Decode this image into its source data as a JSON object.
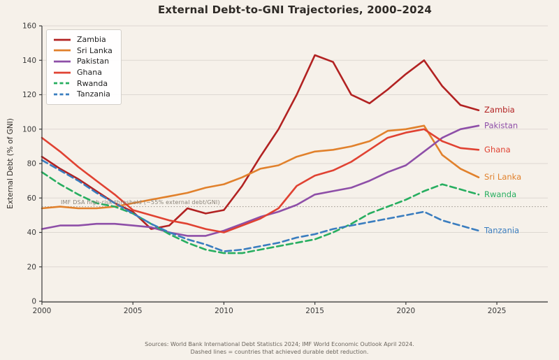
{
  "title": "External Debt-to-GNI Trajectories, 2000–2024",
  "y_axis": {
    "label": "External Debt (% of GNI)",
    "ticks": [
      0,
      20,
      40,
      60,
      80,
      100,
      120,
      140,
      160
    ]
  },
  "x_axis": {
    "ticks": [
      2000,
      2005,
      2010,
      2015,
      2020,
      2025
    ]
  },
  "threshold": {
    "value": 55,
    "label": "IMF DSA high-risk threshold (~55% external debt/GNI)"
  },
  "footer": {
    "line1": "Sources: World Bank International Debt Statistics 2024; IMF World Economic Outlook April 2024.",
    "line2": "Dashed lines = countries that achieved durable debt reduction."
  },
  "chart_data": {
    "type": "line",
    "title": "External Debt-to-GNI Trajectories, 2000–2024",
    "xlabel": "",
    "ylabel": "External Debt (% of GNI)",
    "xlim": [
      2000,
      2027.8
    ],
    "ylim": [
      0,
      160
    ],
    "grid": true,
    "legend_position": "upper left",
    "x": [
      2000,
      2001,
      2002,
      2003,
      2004,
      2005,
      2006,
      2007,
      2008,
      2009,
      2010,
      2011,
      2012,
      2013,
      2014,
      2015,
      2016,
      2017,
      2018,
      2019,
      2020,
      2021,
      2022,
      2023,
      2024
    ],
    "series": [
      {
        "name": "Zambia",
        "color": "#b22222",
        "dashed": false,
        "values": [
          84,
          77,
          71,
          64,
          57,
          52,
          42,
          44,
          54,
          51,
          53,
          67,
          84,
          100,
          120,
          143,
          139,
          120,
          115,
          123,
          132,
          140,
          125,
          114,
          111
        ]
      },
      {
        "name": "Sri Lanka",
        "color": "#e1812c",
        "dashed": false,
        "values": [
          54,
          55,
          54,
          54,
          55,
          57,
          59,
          61,
          63,
          66,
          68,
          72,
          77,
          79,
          84,
          87,
          88,
          90,
          93,
          99,
          100,
          102,
          85,
          77,
          72
        ]
      },
      {
        "name": "Pakistan",
        "color": "#8e4fa8",
        "dashed": false,
        "values": [
          42,
          44,
          44,
          45,
          45,
          44,
          43,
          40,
          38,
          38,
          41,
          45,
          49,
          52,
          56,
          62,
          64,
          66,
          70,
          75,
          79,
          87,
          95,
          100,
          102
        ]
      },
      {
        "name": "Ghana",
        "color": "#e04232",
        "dashed": false,
        "values": [
          95,
          87,
          78,
          70,
          62,
          53,
          50,
          47,
          45,
          42,
          40,
          44,
          48,
          54,
          67,
          73,
          76,
          81,
          88,
          95,
          98,
          100,
          93,
          89,
          88
        ]
      },
      {
        "name": "Rwanda",
        "color": "#27ae60",
        "dashed": true,
        "values": [
          75,
          68,
          62,
          57,
          55,
          51,
          45,
          39,
          34,
          30,
          28,
          28,
          30,
          32,
          34,
          36,
          40,
          45,
          51,
          55,
          59,
          64,
          68,
          65,
          62
        ]
      },
      {
        "name": "Tanzania",
        "color": "#3a7dbf",
        "dashed": true,
        "values": [
          82,
          76,
          70,
          63,
          57,
          51,
          45,
          40,
          36,
          33,
          29,
          30,
          32,
          34,
          37,
          39,
          42,
          44,
          46,
          48,
          50,
          52,
          47,
          44,
          41
        ]
      }
    ],
    "annotations": [
      "IMF DSA high-risk threshold (~55% external debt/GNI)"
    ]
  }
}
